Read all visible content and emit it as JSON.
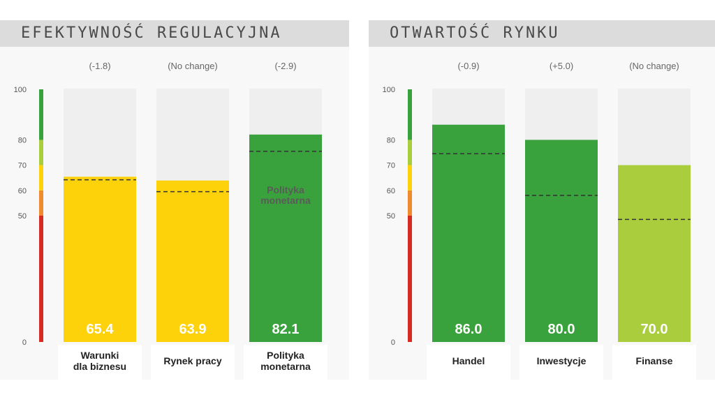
{
  "chart_data": [
    {
      "type": "bar",
      "title": "EFEKTYWNOŚĆ REGULACYJNA",
      "ylim": [
        0,
        100
      ],
      "yticks": [
        0,
        50,
        60,
        70,
        80,
        100
      ],
      "categories": [
        [
          "Warunki",
          "dla biznesu"
        ],
        [
          "Rynek pracy"
        ],
        [
          "Polityka",
          "monetarna"
        ]
      ],
      "values": [
        65.4,
        63.9,
        82.1
      ],
      "value_labels": [
        "65.4",
        "63.9",
        "82.1"
      ],
      "reference_values": [
        64.2,
        59.5,
        75.5
      ],
      "changes": [
        "(-1.8)",
        "(No change)",
        "(-2.9)"
      ],
      "bar_colors": [
        "#fdd20b",
        "#fdd20b",
        "#3aa23c"
      ],
      "inner_labels": [
        [],
        [],
        [
          "Polityka",
          "monetarna"
        ]
      ],
      "scale_bands": [
        {
          "from": 0,
          "to": 50,
          "color": "#d62a23"
        },
        {
          "from": 50,
          "to": 60,
          "color": "#ef8a2f"
        },
        {
          "from": 60,
          "to": 70,
          "color": "#fdd20b"
        },
        {
          "from": 70,
          "to": 80,
          "color": "#a9cd3c"
        },
        {
          "from": 80,
          "to": 100,
          "color": "#3aa23c"
        }
      ]
    },
    {
      "type": "bar",
      "title": "OTWARTOŚĆ RYNKU",
      "ylim": [
        0,
        100
      ],
      "yticks": [
        0,
        50,
        60,
        70,
        80,
        100
      ],
      "categories": [
        [
          "Handel"
        ],
        [
          "Inwestycje"
        ],
        [
          "Finanse"
        ]
      ],
      "values": [
        86.0,
        80.0,
        70.0
      ],
      "value_labels": [
        "86.0",
        "80.0",
        "70.0"
      ],
      "reference_values": [
        74.5,
        58.0,
        48.5
      ],
      "changes": [
        "(-0.9)",
        "(+5.0)",
        "(No change)"
      ],
      "bar_colors": [
        "#3aa23c",
        "#3aa23c",
        "#a9cd3c"
      ],
      "inner_labels": [
        [],
        [],
        []
      ],
      "scale_bands": [
        {
          "from": 0,
          "to": 50,
          "color": "#d62a23"
        },
        {
          "from": 50,
          "to": 60,
          "color": "#ef8a2f"
        },
        {
          "from": 60,
          "to": 70,
          "color": "#fdd20b"
        },
        {
          "from": 70,
          "to": 80,
          "color": "#a9cd3c"
        },
        {
          "from": 80,
          "to": 100,
          "color": "#3aa23c"
        }
      ]
    }
  ]
}
